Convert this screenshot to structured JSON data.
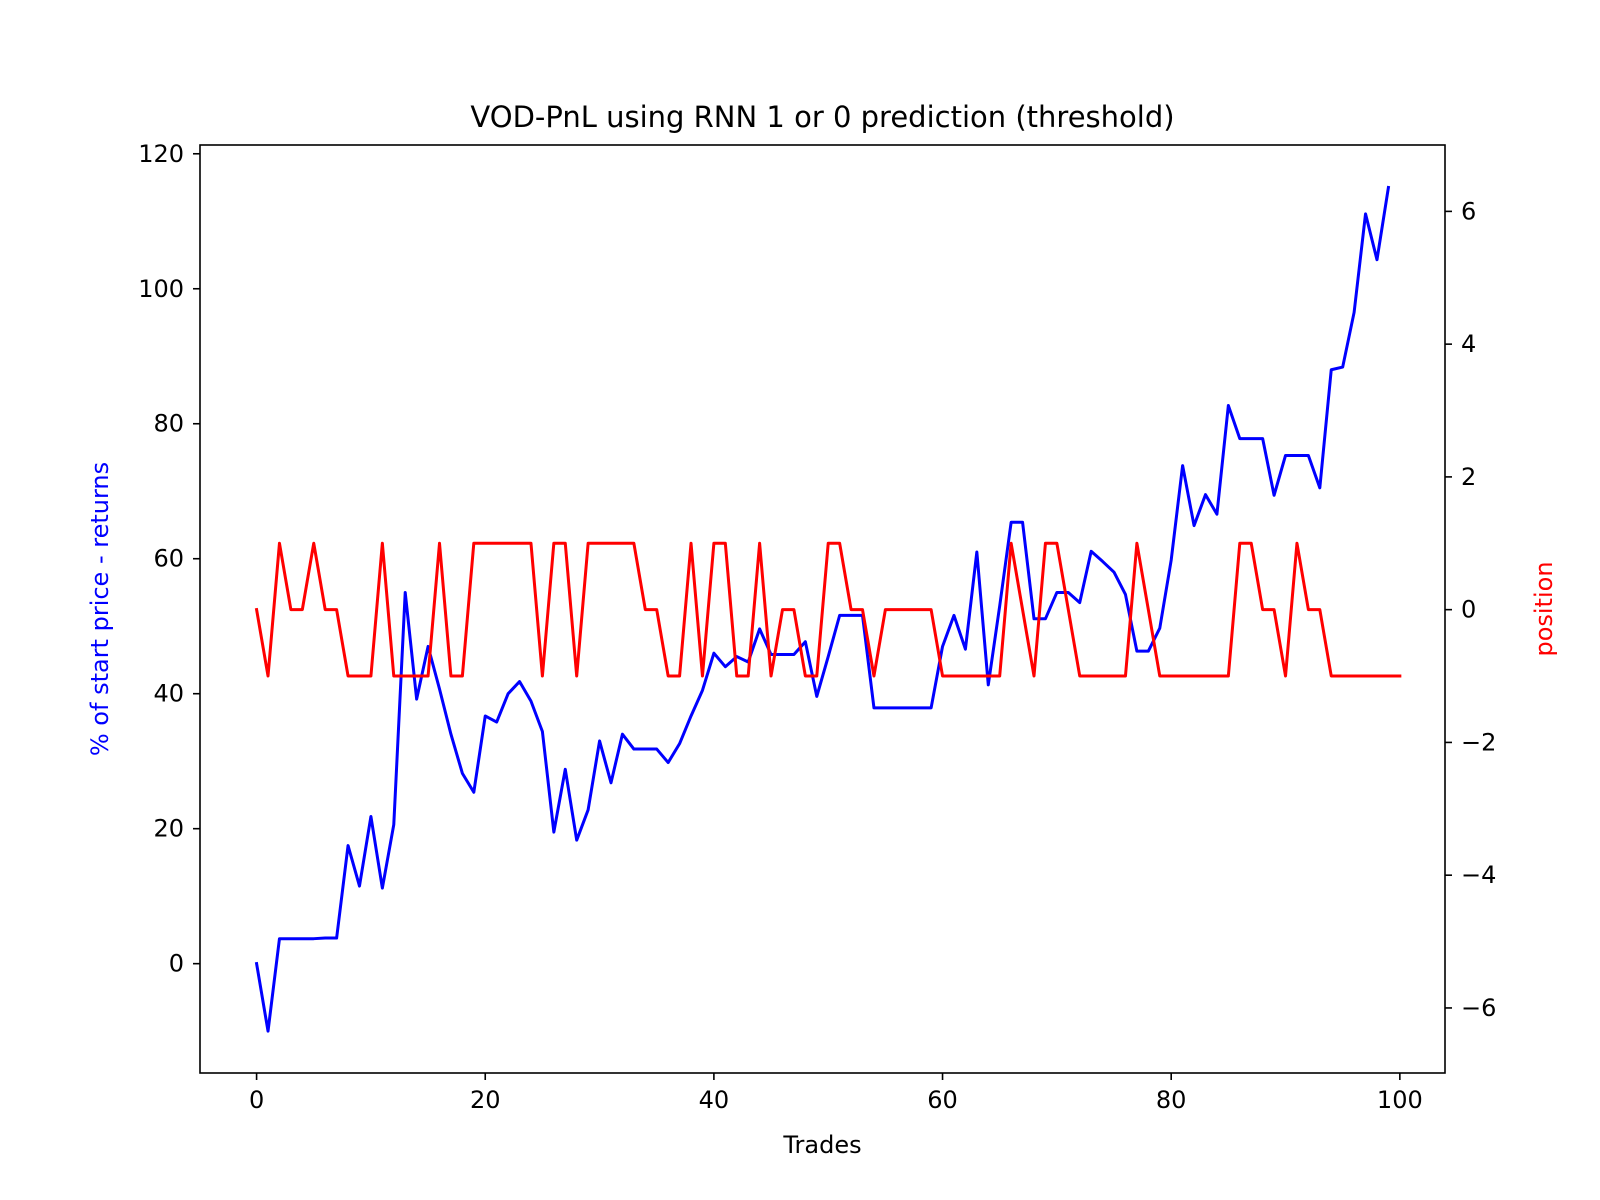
{
  "chart_data": {
    "type": "line",
    "title": "VOD-PnL using RNN 1 or 0 prediction (threshold)",
    "xlabel": "Trades",
    "ylabel": "% of start price - returns",
    "ylabel2": "position",
    "xlim": [
      -4.95,
      103.95
    ],
    "ylim": [
      -16.2,
      121.3
    ],
    "ylim2": [
      -6.98,
      7.0
    ],
    "xticks": [
      0,
      20,
      40,
      60,
      80,
      100
    ],
    "yticks": [
      0,
      20,
      40,
      60,
      80,
      100,
      120
    ],
    "yticks2": [
      -6,
      -4,
      -2,
      0,
      2,
      4,
      6
    ],
    "grid": false,
    "series": [
      {
        "axis": "left",
        "color": "#0000ff",
        "values": [
          0,
          -10,
          3.7,
          3.7,
          3.7,
          3.7,
          3.8,
          3.8,
          17.5,
          11.5,
          21.8,
          11.2,
          20.6,
          55.0,
          39.2,
          47.0,
          40.7,
          34.0,
          28.2,
          25.4,
          36.7,
          35.8,
          40.0,
          41.8,
          38.9,
          34.4,
          19.5,
          28.8,
          18.3,
          22.8,
          33.0,
          26.8,
          34.0,
          31.8,
          31.8,
          31.8,
          29.8,
          32.6,
          36.7,
          40.5,
          46.0,
          44.0,
          45.5,
          44.7,
          49.6,
          45.8,
          45.8,
          45.8,
          47.7,
          39.6,
          45.5,
          51.6,
          51.6,
          51.6,
          37.9,
          37.9,
          37.9,
          37.9,
          37.9,
          37.9,
          47.0,
          51.6,
          46.6,
          61.0,
          41.3,
          53.0,
          65.4,
          65.4,
          51.1,
          51.1,
          55.0,
          55.0,
          53.5,
          61.1,
          59.6,
          58.0,
          54.7,
          46.3,
          46.3,
          49.7,
          59.8,
          73.8,
          64.9,
          69.5,
          66.6,
          82.7,
          77.8,
          77.8,
          77.8,
          69.4,
          75.3,
          75.3,
          75.3,
          70.5,
          88.0,
          88.4,
          96.5,
          111.1,
          104.3,
          115.0
        ]
      },
      {
        "axis": "right",
        "color": "#ff0000",
        "values": [
          0,
          -1,
          1,
          0,
          0,
          1,
          0,
          0,
          -1,
          -1,
          -1,
          1,
          -1,
          -1,
          -1,
          -1,
          1,
          -1,
          -1,
          1,
          1,
          1,
          1,
          1,
          1,
          -1,
          1,
          1,
          -1,
          1,
          1,
          1,
          1,
          1,
          0,
          0,
          -1,
          -1,
          1,
          -1,
          1,
          1,
          -1,
          -1,
          1,
          -1,
          0,
          0,
          -1,
          -1,
          1,
          1,
          0,
          0,
          -1,
          0,
          0,
          0,
          0,
          0,
          -1,
          -1,
          -1,
          -1,
          -1,
          -1,
          1,
          0,
          -1,
          1,
          1,
          0,
          -1,
          -1,
          -1,
          -1,
          -1,
          1,
          0,
          -1,
          -1,
          -1,
          -1,
          -1,
          -1,
          -1,
          1,
          1,
          0,
          0,
          -1,
          1,
          0,
          0,
          -1,
          -1,
          -1,
          -1,
          -1,
          -1,
          -1
        ]
      }
    ]
  }
}
